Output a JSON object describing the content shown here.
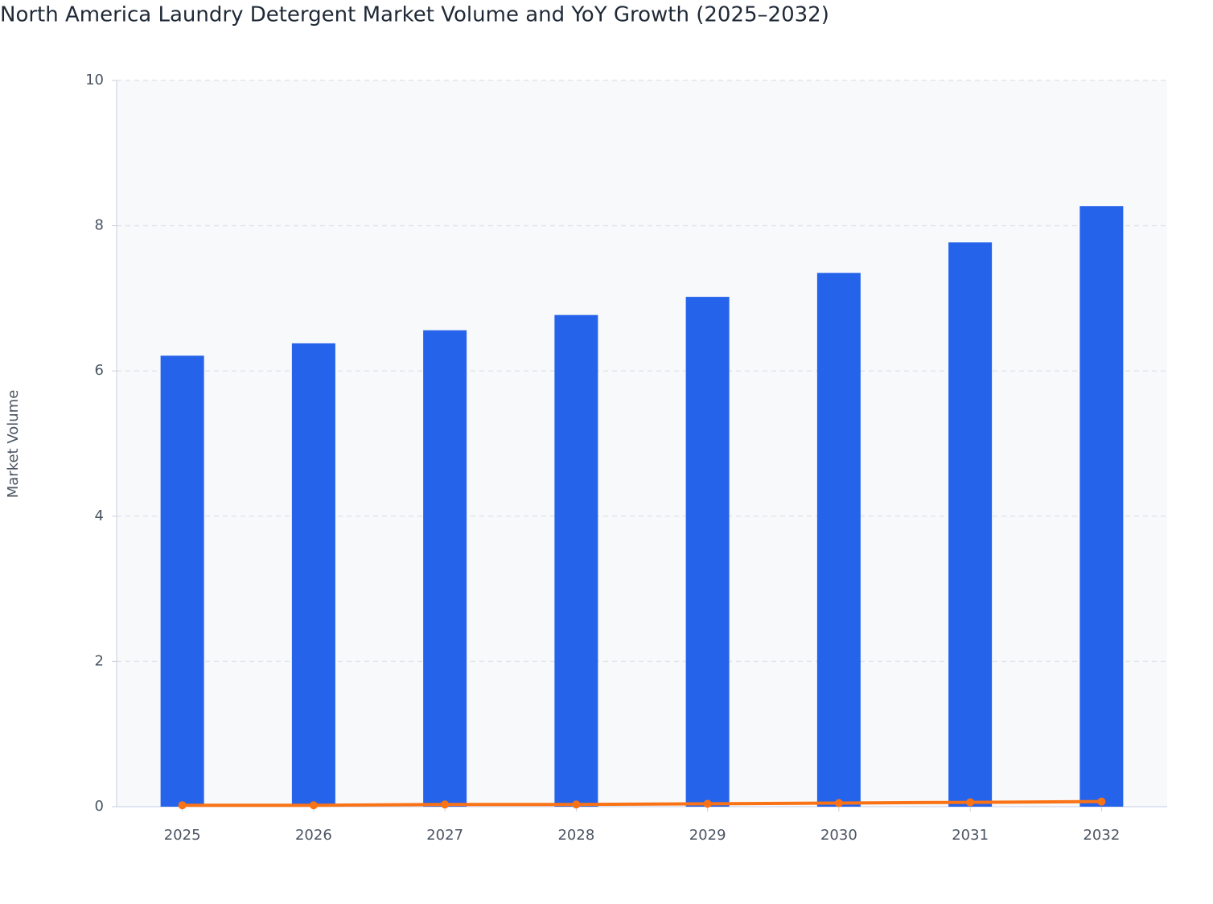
{
  "chart_data": {
    "type": "bar",
    "title": "North America Laundry Detergent Market Volume and YoY Growth (2025–2032)",
    "y_label": "Market Volume",
    "categories": [
      "2025",
      "2026",
      "2027",
      "2028",
      "2029",
      "2030",
      "2031",
      "2032"
    ],
    "series": [
      {
        "type": "bar",
        "color": "#2563eb",
        "values": [
          6.21,
          6.38,
          6.56,
          6.77,
          7.02,
          7.35,
          7.77,
          8.27
        ]
      },
      {
        "type": "line",
        "color": "#f97316",
        "values": [
          0.02,
          0.02,
          0.03,
          0.03,
          0.04,
          0.05,
          0.06,
          0.07
        ]
      }
    ],
    "ylim": [
      0,
      10
    ],
    "yticks": [
      0,
      2,
      4,
      6,
      8,
      10
    ],
    "grid": true
  }
}
